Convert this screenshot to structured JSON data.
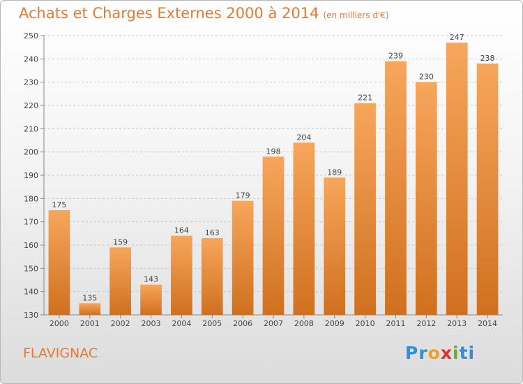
{
  "header": {
    "title": "Achats et Charges Externes 2000 à 2014",
    "subtitle": "(en milliers d'€)"
  },
  "footer": {
    "commune": "FLAVIGNAC",
    "logo_letters": [
      {
        "ch": "P",
        "color": "#2f8fd8"
      },
      {
        "ch": "r",
        "color": "#2f8fd8"
      },
      {
        "ch": "o",
        "color": "#f0a020"
      },
      {
        "ch": "x",
        "color": "#e03030"
      },
      {
        "ch": "i",
        "color": "#60b030"
      },
      {
        "ch": "t",
        "color": "#2f8fd8"
      },
      {
        "ch": "i",
        "color": "#2f8fd8"
      }
    ]
  },
  "colors": {
    "bar_light": "#f7a65c",
    "bar_dark": "#d0701f",
    "accent": "#e8782e"
  },
  "chart_data": {
    "type": "bar",
    "categories": [
      "2000",
      "2001",
      "2002",
      "2003",
      "2004",
      "2005",
      "2006",
      "2007",
      "2008",
      "2009",
      "2010",
      "2011",
      "2012",
      "2013",
      "2014"
    ],
    "values": [
      175,
      135,
      159,
      143,
      164,
      163,
      179,
      198,
      204,
      189,
      221,
      239,
      230,
      247,
      238
    ],
    "ylim": [
      130,
      250
    ],
    "yticks": [
      130,
      140,
      150,
      160,
      170,
      180,
      190,
      200,
      210,
      220,
      230,
      240,
      250
    ],
    "grid": true,
    "title": "Achats et Charges Externes 2000 à 2014",
    "ylabel": "",
    "xlabel": ""
  }
}
